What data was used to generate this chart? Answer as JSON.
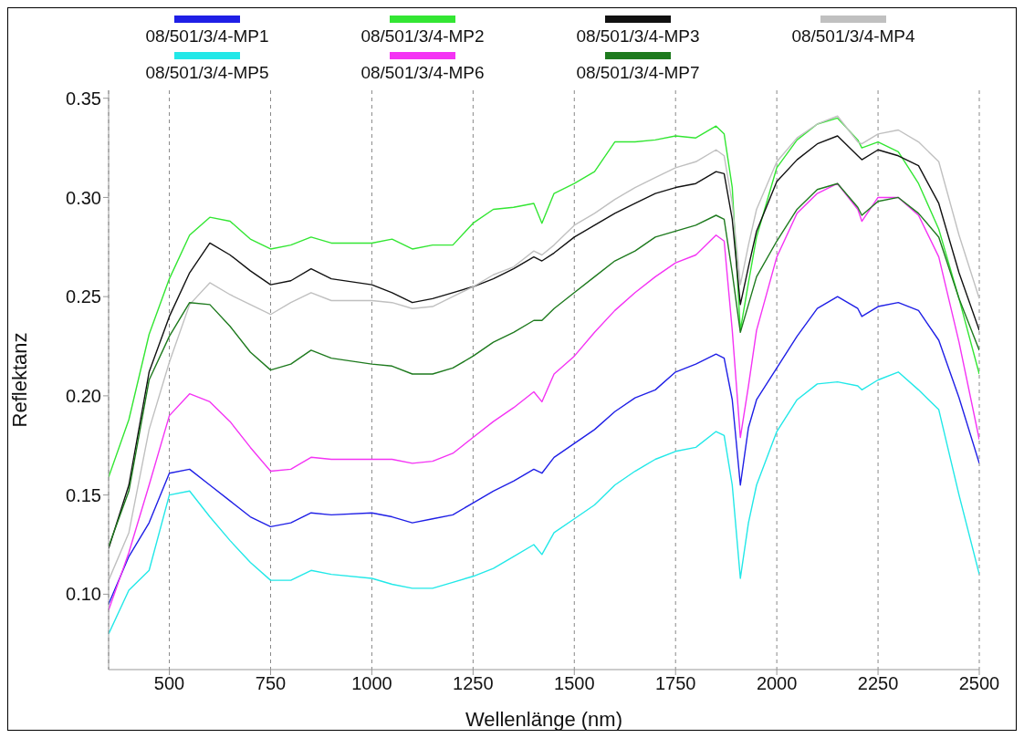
{
  "chart_data": {
    "type": "line",
    "xlabel": "Wellenlänge (nm)",
    "ylabel": "Reflektanz",
    "x": [
      350,
      400,
      450,
      500,
      550,
      600,
      650,
      700,
      750,
      800,
      850,
      900,
      1000,
      1050,
      1100,
      1150,
      1200,
      1250,
      1300,
      1350,
      1400,
      1420,
      1450,
      1500,
      1550,
      1600,
      1650,
      1700,
      1750,
      1800,
      1850,
      1870,
      1890,
      1910,
      1930,
      1950,
      2000,
      2050,
      2100,
      2150,
      2200,
      2210,
      2250,
      2300,
      2350,
      2400,
      2450,
      2500
    ],
    "series": [
      {
        "name": "08/501/3/4-MP1",
        "color": "#1f1fe6",
        "values": [
          0.095,
          0.119,
          0.136,
          0.161,
          0.163,
          0.155,
          0.147,
          0.139,
          0.134,
          0.136,
          0.141,
          0.14,
          0.141,
          0.139,
          0.136,
          0.138,
          0.14,
          0.146,
          0.152,
          0.157,
          0.163,
          0.161,
          0.169,
          0.176,
          0.183,
          0.192,
          0.199,
          0.203,
          0.212,
          0.216,
          0.221,
          0.219,
          0.198,
          0.155,
          0.184,
          0.198,
          0.214,
          0.23,
          0.244,
          0.25,
          0.244,
          0.24,
          0.245,
          0.247,
          0.243,
          0.228,
          0.199,
          0.166
        ]
      },
      {
        "name": "08/501/3/4-MP2",
        "color": "#33e633",
        "values": [
          0.159,
          0.188,
          0.231,
          0.259,
          0.281,
          0.29,
          0.288,
          0.279,
          0.274,
          0.276,
          0.28,
          0.277,
          0.277,
          0.279,
          0.274,
          0.276,
          0.276,
          0.287,
          0.294,
          0.295,
          0.297,
          0.287,
          0.302,
          0.307,
          0.313,
          0.328,
          0.328,
          0.329,
          0.331,
          0.33,
          0.336,
          0.332,
          0.305,
          0.233,
          0.257,
          0.28,
          0.315,
          0.329,
          0.337,
          0.34,
          0.329,
          0.325,
          0.328,
          0.323,
          0.307,
          0.284,
          0.249,
          0.211
        ]
      },
      {
        "name": "08/501/3/4-MP3",
        "color": "#111111",
        "values": [
          0.123,
          0.155,
          0.212,
          0.24,
          0.262,
          0.277,
          0.271,
          0.263,
          0.256,
          0.258,
          0.264,
          0.259,
          0.256,
          0.252,
          0.247,
          0.249,
          0.252,
          0.255,
          0.259,
          0.264,
          0.27,
          0.268,
          0.272,
          0.28,
          0.286,
          0.292,
          0.297,
          0.302,
          0.305,
          0.307,
          0.313,
          0.312,
          0.289,
          0.246,
          0.265,
          0.283,
          0.308,
          0.319,
          0.327,
          0.331,
          0.321,
          0.319,
          0.324,
          0.321,
          0.316,
          0.297,
          0.262,
          0.233
        ]
      },
      {
        "name": "08/501/3/4-MP4",
        "color": "#c0c0c0",
        "values": [
          0.107,
          0.131,
          0.183,
          0.217,
          0.246,
          0.257,
          0.251,
          0.246,
          0.241,
          0.247,
          0.252,
          0.248,
          0.248,
          0.247,
          0.244,
          0.245,
          0.25,
          0.255,
          0.261,
          0.265,
          0.273,
          0.271,
          0.276,
          0.286,
          0.292,
          0.299,
          0.305,
          0.31,
          0.315,
          0.318,
          0.324,
          0.321,
          0.297,
          0.256,
          0.276,
          0.294,
          0.318,
          0.33,
          0.337,
          0.341,
          0.328,
          0.327,
          0.332,
          0.334,
          0.328,
          0.318,
          0.281,
          0.249
        ]
      },
      {
        "name": "08/501/3/4-MP5",
        "color": "#22e8e8",
        "values": [
          0.08,
          0.102,
          0.112,
          0.15,
          0.152,
          0.139,
          0.127,
          0.116,
          0.107,
          0.107,
          0.112,
          0.11,
          0.108,
          0.105,
          0.103,
          0.103,
          0.106,
          0.109,
          0.113,
          0.119,
          0.125,
          0.12,
          0.131,
          0.138,
          0.145,
          0.155,
          0.162,
          0.168,
          0.172,
          0.174,
          0.182,
          0.18,
          0.155,
          0.108,
          0.136,
          0.155,
          0.182,
          0.198,
          0.206,
          0.207,
          0.205,
          0.203,
          0.208,
          0.212,
          0.203,
          0.193,
          0.15,
          0.11
        ]
      },
      {
        "name": "08/501/3/4-MP6",
        "color": "#f433f4",
        "values": [
          0.092,
          0.121,
          0.155,
          0.19,
          0.201,
          0.197,
          0.187,
          0.174,
          0.162,
          0.163,
          0.169,
          0.168,
          0.168,
          0.168,
          0.166,
          0.167,
          0.171,
          0.179,
          0.187,
          0.194,
          0.202,
          0.197,
          0.211,
          0.22,
          0.232,
          0.243,
          0.252,
          0.26,
          0.267,
          0.271,
          0.281,
          0.278,
          0.233,
          0.179,
          0.205,
          0.233,
          0.27,
          0.292,
          0.302,
          0.307,
          0.294,
          0.288,
          0.3,
          0.3,
          0.291,
          0.27,
          0.227,
          0.178
        ]
      },
      {
        "name": "08/501/3/4-MP7",
        "color": "#1e7a1e",
        "values": [
          0.124,
          0.152,
          0.208,
          0.23,
          0.247,
          0.246,
          0.235,
          0.222,
          0.213,
          0.216,
          0.223,
          0.219,
          0.216,
          0.215,
          0.211,
          0.211,
          0.214,
          0.22,
          0.227,
          0.232,
          0.238,
          0.238,
          0.244,
          0.252,
          0.26,
          0.268,
          0.273,
          0.28,
          0.283,
          0.286,
          0.291,
          0.289,
          0.262,
          0.232,
          0.246,
          0.26,
          0.278,
          0.294,
          0.304,
          0.307,
          0.295,
          0.291,
          0.298,
          0.3,
          0.292,
          0.28,
          0.249,
          0.223
        ]
      }
    ],
    "xlim": [
      350,
      2500
    ],
    "xticks": [
      500,
      750,
      1000,
      1250,
      1500,
      1750,
      2000,
      2250,
      2500
    ],
    "ylim": [
      0.062,
      0.354
    ],
    "yticks": [
      {
        "value": 0.1,
        "label": "0.10"
      },
      0.15,
      {
        "value": 0.2,
        "label": "0.20"
      },
      0.25,
      {
        "value": 0.3,
        "label": "0.30"
      },
      0.35
    ],
    "grid": "x",
    "legend": "top",
    "marker": "none",
    "line_style": "solid"
  }
}
